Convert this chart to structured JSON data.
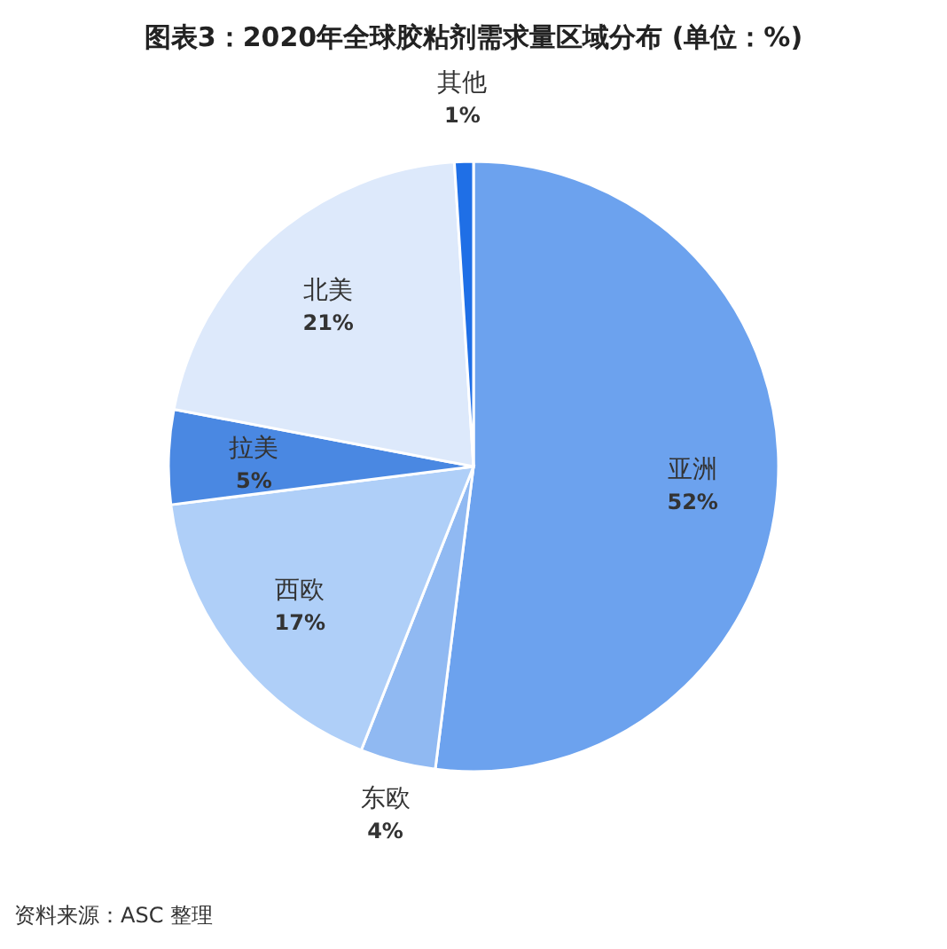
{
  "chart_data": {
    "type": "pie",
    "title": "图表3：2020年全球胶粘剂需求量区域分布 (单位：%)",
    "categories": [
      "亚洲",
      "东欧",
      "西欧",
      "拉美",
      "北美",
      "其他"
    ],
    "values": [
      52,
      4,
      17,
      5,
      21,
      1
    ],
    "value_labels": [
      "52%",
      "4%",
      "17%",
      "5%",
      "21%",
      "1%"
    ],
    "colors": [
      "#6ca2ee",
      "#90b9f2",
      "#afcff8",
      "#4a88e2",
      "#dde9fb",
      "#1f6fe6"
    ],
    "annotations": [
      "资料来源：ASC 整理"
    ]
  }
}
